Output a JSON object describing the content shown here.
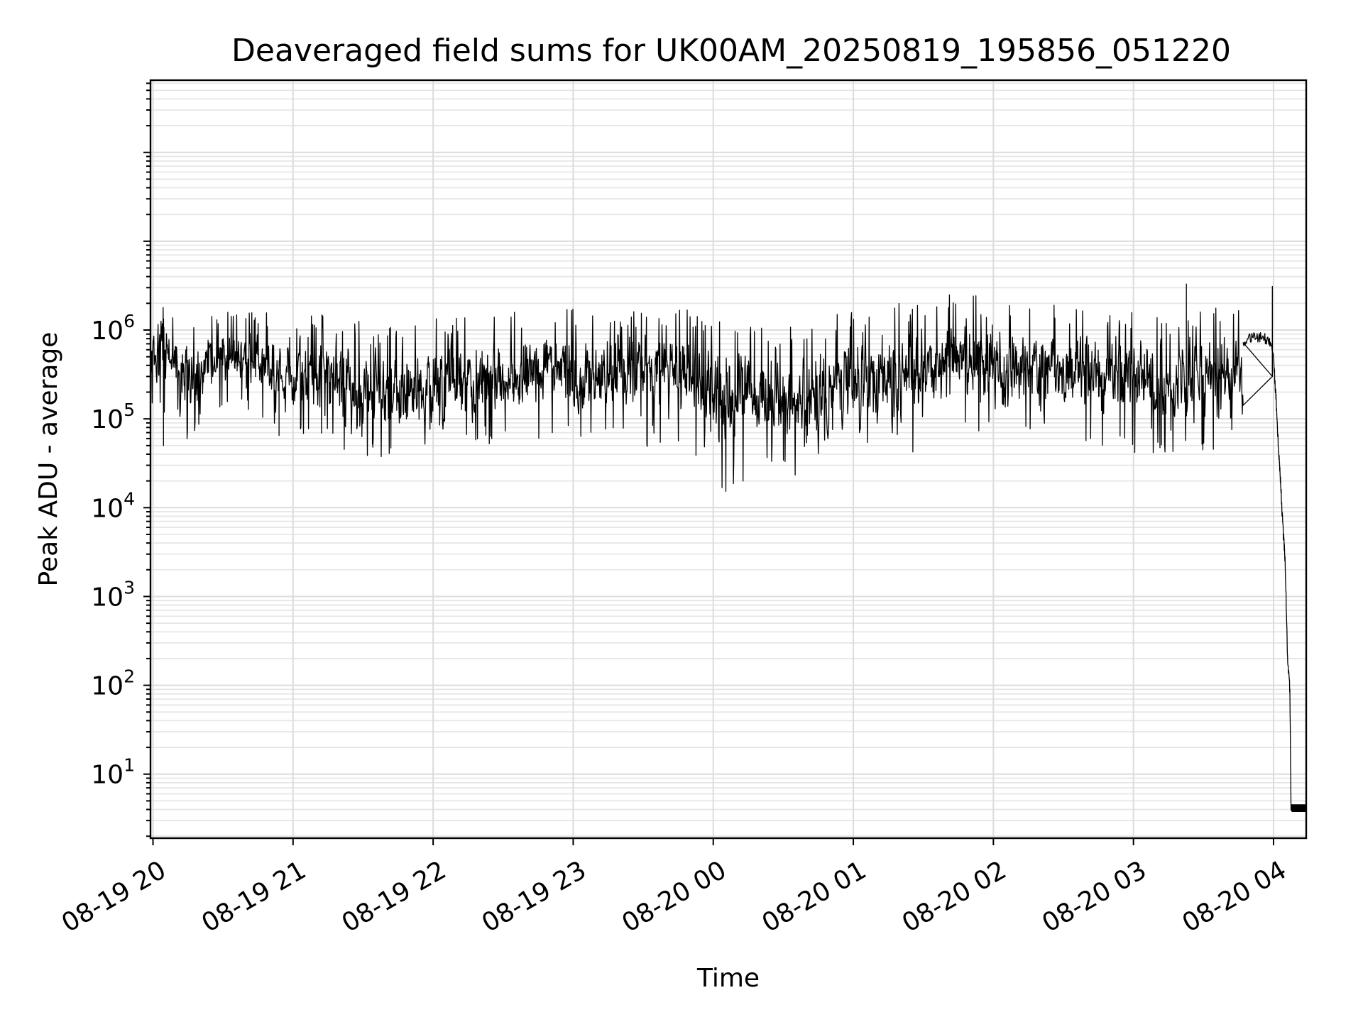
{
  "chart_data": {
    "type": "line",
    "title": "Deaveraged field sums for UK00AM_20250819_195856_051220",
    "xlabel": "Time",
    "ylabel": "Peak ADU - average",
    "yscale": "log",
    "grid": true,
    "grid_minor": true,
    "xlim": [
      "2025-08-19 19:58:56",
      "2025-08-20 04:14:00"
    ],
    "ylim": [
      1.9,
      650000000
    ],
    "x_tick_labels": [
      "08-19 20",
      "08-19 21",
      "08-19 22",
      "08-19 23",
      "08-20 00",
      "08-20 01",
      "08-20 02",
      "08-20 03",
      "08-20 04"
    ],
    "x_tick_times": [
      "2025-08-19 20:00",
      "2025-08-19 21:00",
      "2025-08-19 22:00",
      "2025-08-19 23:00",
      "2025-08-20 00:00",
      "2025-08-20 01:00",
      "2025-08-20 02:00",
      "2025-08-20 03:00",
      "2025-08-20 04:00"
    ],
    "y_ticks": [
      {
        "value": 10,
        "base": "10",
        "exp": "1"
      },
      {
        "value": 100,
        "base": "10",
        "exp": "2"
      },
      {
        "value": 1000,
        "base": "10",
        "exp": "3"
      },
      {
        "value": 10000,
        "base": "10",
        "exp": "4"
      },
      {
        "value": 100000,
        "base": "10",
        "exp": "5"
      },
      {
        "value": 1000000,
        "base": "10",
        "exp": "6"
      }
    ],
    "series": [
      {
        "color": "#000000",
        "envelope": {
          "comment": "approximate median and fluctuation band of the noisy trace",
          "time": [
            "2025-08-19 19:58:56",
            "2025-08-19 20:06",
            "2025-08-19 20:15",
            "2025-08-19 20:25",
            "2025-08-19 20:35",
            "2025-08-19 20:45",
            "2025-08-19 21:00",
            "2025-08-19 21:15",
            "2025-08-19 21:30",
            "2025-08-19 21:40",
            "2025-08-19 22:00",
            "2025-08-19 22:30",
            "2025-08-19 23:00",
            "2025-08-19 23:30",
            "2025-08-19 23:45",
            "2025-08-20 00:05",
            "2025-08-20 00:20",
            "2025-08-20 00:40",
            "2025-08-20 01:00",
            "2025-08-20 01:30",
            "2025-08-20 01:45",
            "2025-08-20 02:00",
            "2025-08-20 02:30",
            "2025-08-20 03:00",
            "2025-08-20 03:15",
            "2025-08-20 03:30",
            "2025-08-20 03:47"
          ],
          "median": [
            600000,
            520000,
            280000,
            450000,
            500000,
            430000,
            330000,
            320000,
            210000,
            190000,
            230000,
            330000,
            330000,
            310000,
            330000,
            170000,
            170000,
            160000,
            250000,
            340000,
            440000,
            380000,
            340000,
            270000,
            230000,
            290000,
            300000
          ],
          "peak": [
            2300000,
            2000000,
            1200000,
            1400000,
            1600000,
            1500000,
            1500000,
            1500000,
            1300000,
            1000000,
            1300000,
            1500000,
            1600000,
            1600000,
            1700000,
            1400000,
            1100000,
            1000000,
            1700000,
            2000000,
            2500000,
            2000000,
            1800000,
            1500000,
            1300000,
            1700000,
            1600000
          ]
        },
        "outliers": [
          {
            "time": "2025-08-19 20:04:30",
            "value": 50000
          },
          {
            "time": "2025-08-19 20:54:00",
            "value": 65000
          },
          {
            "time": "2025-08-19 21:34:00",
            "value": 52000
          },
          {
            "time": "2025-08-20 00:40:00",
            "value": 54000
          },
          {
            "time": "2025-08-20 03:12:00",
            "value": 51000
          },
          {
            "time": "2025-08-20 03:22:40",
            "value": 3300000
          },
          {
            "time": "2025-08-20 03:59:30",
            "value": 3100000
          }
        ],
        "tail": {
          "time": [
            "2025-08-20 03:47",
            "2025-08-20 03:51",
            "2025-08-20 03:55",
            "2025-08-20 03:58",
            "2025-08-20 04:00",
            "2025-08-20 04:01",
            "2025-08-20 04:02",
            "2025-08-20 04:03",
            "2025-08-20 04:04",
            "2025-08-20 04:05",
            "2025-08-20 04:06",
            "2025-08-20 04:07",
            "2025-08-20 04:07:30",
            "2025-08-20 04:08",
            "2025-08-20 04:14"
          ],
          "value": [
            750000,
            850000,
            820000,
            780000,
            500000,
            180000,
            55000,
            20000,
            6000,
            2500,
            200,
            90,
            4,
            3.8,
            3.8
          ]
        }
      }
    ]
  }
}
